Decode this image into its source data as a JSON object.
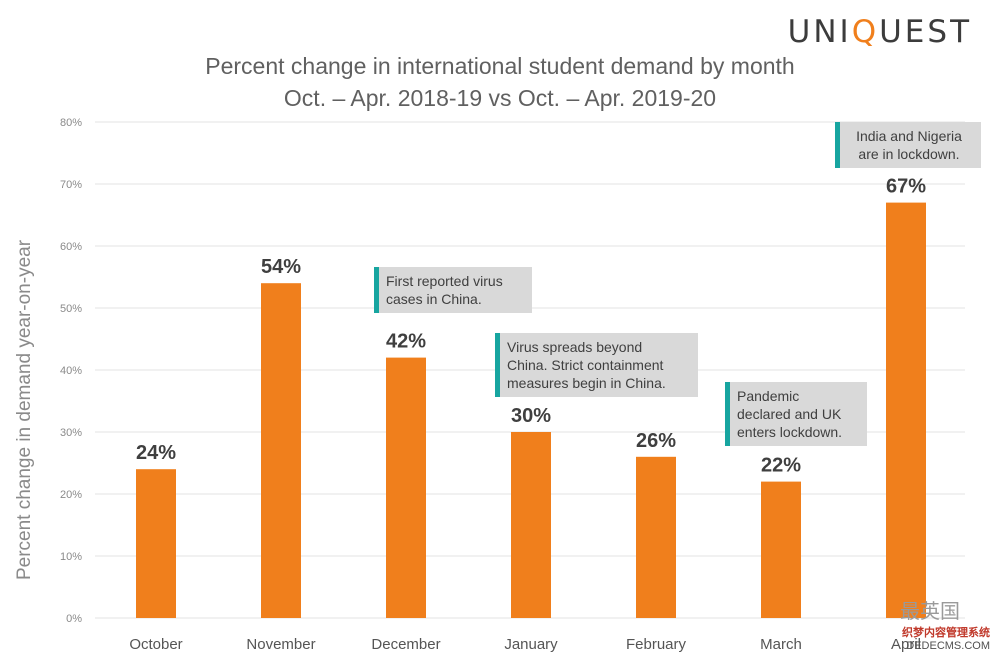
{
  "brand": {
    "pre": "UNI",
    "q": "Q",
    "post": "UEST"
  },
  "chart_data": {
    "type": "bar",
    "title": "Percent change in international student demand by month",
    "subtitle": "Oct. – Apr. 2018-19 vs Oct. – Apr. 2019-20",
    "ylabel": "Percent change in demand year-on-year",
    "xlabel": "",
    "categories": [
      "October",
      "November",
      "December",
      "January",
      "February",
      "March",
      "April"
    ],
    "values": [
      24,
      54,
      42,
      30,
      26,
      22,
      67
    ],
    "data_labels": [
      "24%",
      "54%",
      "42%",
      "30%",
      "26%",
      "22%",
      "67%"
    ],
    "ylim": [
      0,
      80
    ],
    "yticks": [
      "0%",
      "10%",
      "20%",
      "30%",
      "40%",
      "50%",
      "60%",
      "70%",
      "80%"
    ],
    "grid": true,
    "colors": {
      "bar": "#f07f1c",
      "grid": "#e3e3e3",
      "accent": "#17a5a0",
      "callout_bg": "#d9d9d9"
    },
    "annotations": [
      {
        "lines": [
          "First reported virus",
          "cases in China."
        ]
      },
      {
        "lines": [
          "Virus spreads beyond",
          "China. Strict containment",
          "measures begin in China."
        ]
      },
      {
        "lines": [
          "Pandemic",
          "declared and UK",
          "enters lockdown."
        ]
      },
      {
        "lines": [
          "India and Nigeria",
          "are in lockdown."
        ]
      }
    ]
  },
  "watermark": {
    "line1": "最英国",
    "line2": "织梦内容管理系统",
    "line3": "DEDECMS.COM"
  }
}
